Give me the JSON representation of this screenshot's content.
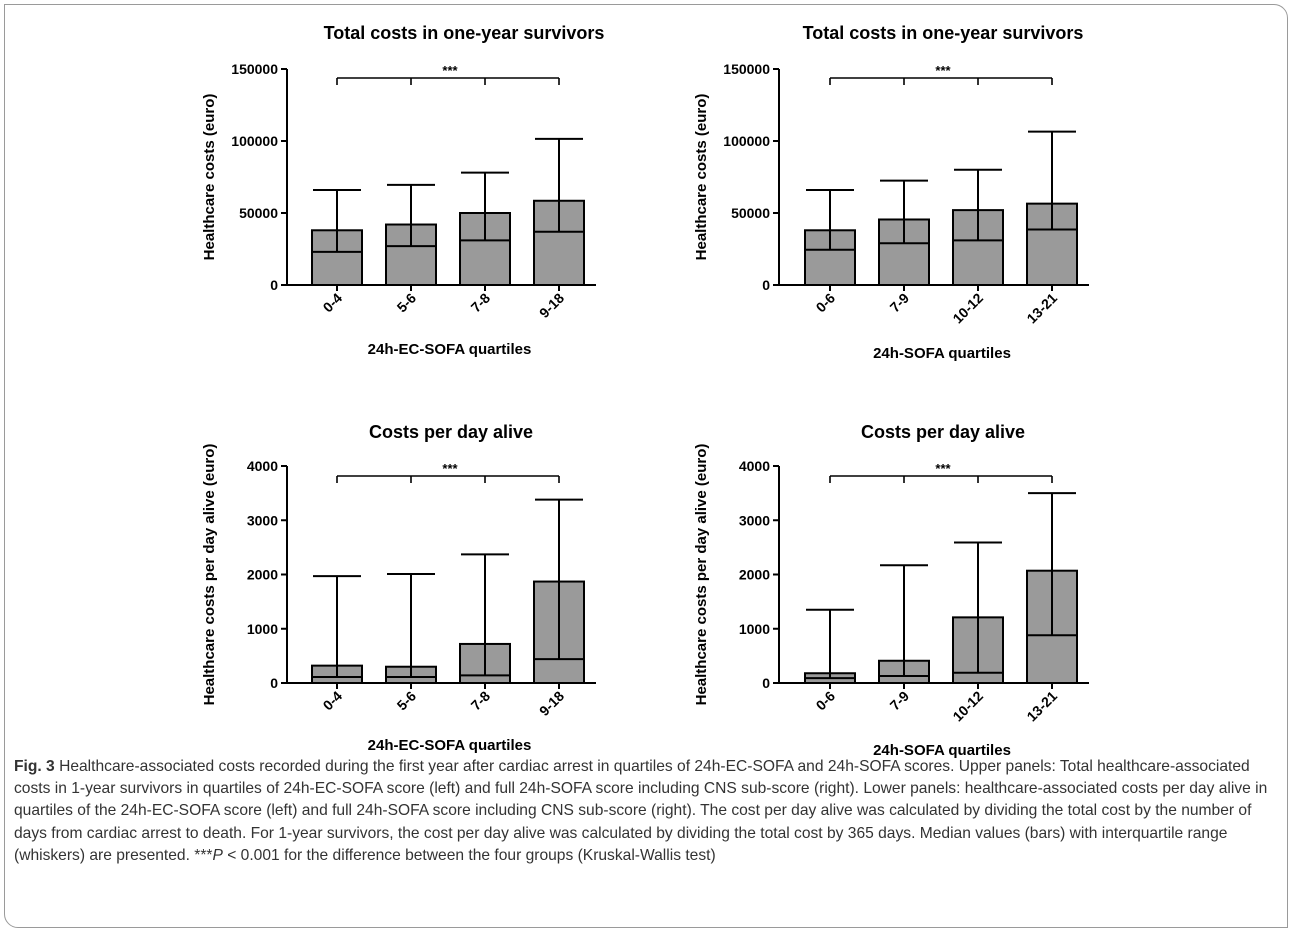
{
  "chart_data": [
    {
      "type": "bar",
      "title": "Total costs in one-year survivors",
      "xlabel": "24h-EC-SOFA quartiles",
      "ylabel": "Healthcare costs (euro)",
      "categories": [
        "0-4",
        "5-6",
        "7-8",
        "9-18"
      ],
      "values": [
        38000,
        42000,
        50000,
        58500
      ],
      "iqr_low": [
        23000,
        27000,
        31000,
        37000
      ],
      "iqr_high": [
        66000,
        69500,
        78000,
        101500
      ],
      "ylim": [
        0,
        150000
      ],
      "yticks": [
        0,
        50000,
        100000,
        150000
      ],
      "ytick_labels": [
        "0",
        "50000",
        "100000",
        "150000"
      ],
      "significance": "***"
    },
    {
      "type": "bar",
      "title": "Total costs in one-year survivors",
      "xlabel": "24h-SOFA quartiles",
      "ylabel": "Healthcare costs (euro)",
      "categories": [
        "0-6",
        "7-9",
        "10-12",
        "13-21"
      ],
      "values": [
        38000,
        45500,
        52000,
        56500
      ],
      "iqr_low": [
        24500,
        29000,
        31000,
        38500
      ],
      "iqr_high": [
        66000,
        72500,
        80000,
        106500
      ],
      "ylim": [
        0,
        150000
      ],
      "yticks": [
        0,
        50000,
        100000,
        150000
      ],
      "ytick_labels": [
        "0",
        "50000",
        "100000",
        "150000"
      ],
      "significance": "***"
    },
    {
      "type": "bar",
      "title": "Costs per day alive",
      "xlabel": "24h-EC-SOFA quartiles",
      "ylabel": "Healthcare costs per day alive (euro)",
      "categories": [
        "0-4",
        "5-6",
        "7-8",
        "9-18"
      ],
      "values": [
        320,
        300,
        720,
        1870
      ],
      "iqr_low": [
        110,
        110,
        140,
        440
      ],
      "iqr_high": [
        1970,
        2010,
        2370,
        3380
      ],
      "ylim": [
        0,
        4000
      ],
      "yticks": [
        0,
        1000,
        2000,
        3000,
        4000
      ],
      "ytick_labels": [
        "0",
        "1000",
        "2000",
        "3000",
        "4000"
      ],
      "significance": "***"
    },
    {
      "type": "bar",
      "title": "Costs per day alive",
      "xlabel": "24h-SOFA quartiles",
      "ylabel": "Healthcare costs per day alive (euro)",
      "categories": [
        "0-6",
        "7-9",
        "10-12",
        "13-21"
      ],
      "values": [
        180,
        410,
        1210,
        2070
      ],
      "iqr_low": [
        90,
        130,
        190,
        880
      ],
      "iqr_high": [
        1350,
        2170,
        2590,
        3500
      ],
      "ylim": [
        0,
        4000
      ],
      "yticks": [
        0,
        1000,
        2000,
        3000,
        4000
      ],
      "ytick_labels": [
        "0",
        "1000",
        "2000",
        "3000",
        "4000"
      ],
      "significance": "***"
    }
  ],
  "caption": {
    "fig_label": "Fig. 3",
    "text_before_p": " Healthcare-associated costs recorded during the first year after cardiac arrest in quartiles of 24h-EC-SOFA and 24h-SOFA scores. Upper panels: Total healthcare-associated costs in 1-year survivors in quartiles of 24h-EC-SOFA score (left) and full 24h-SOFA score including CNS sub-score (right). Lower panels: healthcare-associated costs per day alive in quartiles of the 24h-EC-SOFA score (left) and full 24h-SOFA score including CNS sub-score (right). The cost per day alive was calculated by dividing the total cost by the number of days from cardiac arrest to death. For 1-year survivors, the cost per day alive was calculated by dividing the total cost by 365 days. Median values (bars) with interquartile range (whiskers) are presented. ***",
    "p_symbol": "P",
    "text_after_p": " < 0.001 for the difference between the four groups (Kruskal-Wallis test)"
  },
  "colors": {
    "bar_fill": "#9a9a9a",
    "ink": "#000000",
    "frame": "#9a9a9a",
    "caption_text": "#333333"
  }
}
